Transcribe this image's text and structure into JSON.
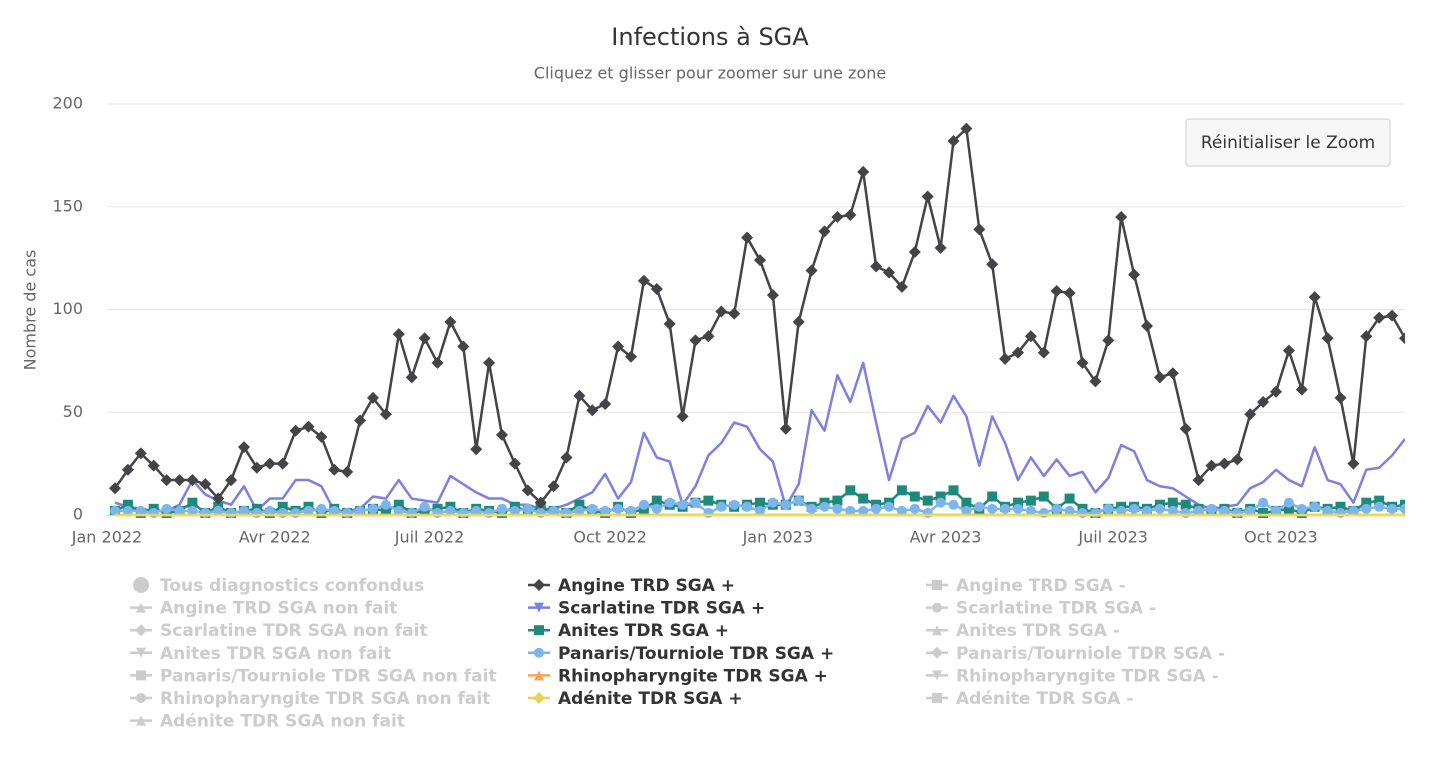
{
  "chart_data": {
    "type": "line",
    "title": "Infections à SGA",
    "subtitle": "Cliquez et glisser pour zoomer sur une zone",
    "y_axis_label": "Nombre de cas",
    "button": "Réinitialiser le Zoom",
    "ylim": [
      0,
      200
    ],
    "yticks": [
      0,
      50,
      100,
      150,
      200
    ],
    "grid": true,
    "legend_position": "bottom",
    "categories": [
      "Jan 2022",
      null,
      null,
      null,
      null,
      null,
      null,
      null,
      null,
      null,
      null,
      null,
      null,
      "Avr 2022",
      null,
      null,
      null,
      null,
      null,
      null,
      null,
      null,
      null,
      null,
      null,
      "Juil 2022",
      null,
      null,
      null,
      null,
      null,
      null,
      null,
      null,
      null,
      null,
      null,
      null,
      null,
      "Oct 2022",
      null,
      null,
      null,
      null,
      null,
      null,
      null,
      null,
      null,
      null,
      null,
      null,
      "Jan 2023",
      null,
      null,
      null,
      null,
      null,
      null,
      null,
      null,
      null,
      null,
      null,
      null,
      "Avr 2023",
      null,
      null,
      null,
      null,
      null,
      null,
      null,
      null,
      null,
      null,
      null,
      null,
      "Juil 2023",
      null,
      null,
      null,
      null,
      null,
      null,
      null,
      null,
      null,
      null,
      null,
      null,
      "Oct 2023",
      null,
      null,
      null,
      null,
      null,
      null,
      null,
      null,
      null
    ],
    "series": [
      {
        "name": "Tous diagnostics confondus",
        "visible": false,
        "marker": "circle"
      },
      {
        "name": "Angine TRD SGA +",
        "visible": true,
        "marker": "diamond",
        "color": "#434348",
        "show_markers": true,
        "values": [
          13,
          22,
          30,
          24,
          17,
          17,
          17,
          15,
          8,
          17,
          33,
          23,
          25,
          25,
          41,
          43,
          38,
          22,
          21,
          46,
          57,
          49,
          88,
          67,
          86,
          74,
          94,
          82,
          32,
          74,
          39,
          25,
          12,
          6,
          14,
          28,
          58,
          51,
          54,
          82,
          77,
          114,
          110,
          93,
          48,
          85,
          87,
          99,
          98,
          135,
          124,
          107,
          42,
          94,
          119,
          138,
          145,
          146,
          167,
          121,
          118,
          111,
          128,
          155,
          130,
          182,
          188,
          139,
          122,
          76,
          79,
          87,
          79,
          109,
          108,
          74,
          65,
          85,
          145,
          117,
          92,
          67,
          69,
          42,
          17,
          24,
          25,
          27,
          49,
          55,
          60,
          80,
          61,
          106,
          86,
          57,
          25,
          87,
          96,
          97,
          86
        ]
      },
      {
        "name": "Angine TRD SGA -",
        "visible": false,
        "marker": "square"
      },
      {
        "name": "Angine TRD SGA non fait",
        "visible": false,
        "marker": "triangle"
      },
      {
        "name": "Scarlatine TDR SGA +",
        "visible": true,
        "marker": "triangle-down",
        "color": "#7c80de",
        "show_markers": false,
        "values": [
          6,
          4,
          3,
          2,
          2,
          5,
          17,
          10,
          7,
          5,
          14,
          2,
          8,
          8,
          17,
          17,
          14,
          2,
          2,
          3,
          9,
          8,
          17,
          8,
          7,
          6,
          19,
          15,
          11,
          8,
          8,
          5,
          5,
          3,
          3,
          5,
          8,
          11,
          20,
          8,
          16,
          40,
          28,
          26,
          5,
          14,
          29,
          35,
          45,
          43,
          32,
          26,
          4,
          15,
          51,
          41,
          68,
          55,
          74,
          45,
          17,
          37,
          40,
          53,
          45,
          58,
          48,
          24,
          48,
          35,
          17,
          28,
          19,
          27,
          19,
          21,
          11,
          18,
          34,
          31,
          17,
          14,
          13,
          9,
          5,
          3,
          4,
          5,
          13,
          16,
          22,
          17,
          14,
          33,
          17,
          15,
          6,
          22,
          23,
          29,
          37
        ]
      },
      {
        "name": "Scarlatine TDR SGA -",
        "visible": false,
        "marker": "circle"
      },
      {
        "name": "Scarlatine TDR SGA non fait",
        "visible": false,
        "marker": "diamond"
      },
      {
        "name": "Anites TDR SGA +",
        "visible": true,
        "marker": "square",
        "color": "#1f8a7c",
        "show_markers": true,
        "values": [
          2,
          5,
          1,
          3,
          1,
          2,
          6,
          1,
          4,
          1,
          2,
          3,
          1,
          4,
          2,
          4,
          1,
          3,
          1,
          2,
          3,
          2,
          5,
          1,
          2,
          3,
          4,
          1,
          3,
          2,
          1,
          4,
          2,
          3,
          2,
          1,
          5,
          2,
          1,
          4,
          1,
          3,
          7,
          5,
          4,
          6,
          7,
          5,
          4,
          5,
          6,
          5,
          5,
          7,
          4,
          6,
          7,
          12,
          8,
          5,
          6,
          12,
          9,
          7,
          9,
          12,
          6,
          3,
          9,
          4,
          6,
          7,
          9,
          3,
          8,
          3,
          1,
          3,
          4,
          4,
          3,
          5,
          6,
          5,
          3,
          2,
          3,
          1,
          3,
          1,
          2,
          3,
          1,
          4,
          3,
          4,
          2,
          6,
          7,
          4,
          5
        ]
      },
      {
        "name": "Anites TDR SGA -",
        "visible": false,
        "marker": "triangle"
      },
      {
        "name": "Anites TDR SGA non fait",
        "visible": false,
        "marker": "triangle-down"
      },
      {
        "name": "Panaris/Tourniole TDR SGA +",
        "visible": true,
        "marker": "circle",
        "color": "#7cb5ec",
        "show_markers": true,
        "values": [
          2,
          2,
          2,
          1,
          3,
          2,
          2,
          1,
          2,
          1,
          2,
          1,
          2,
          1,
          1,
          2,
          3,
          2,
          1,
          2,
          3,
          5,
          2,
          1,
          4,
          1,
          2,
          1,
          2,
          1,
          3,
          2,
          3,
          1,
          2,
          1,
          2,
          3,
          2,
          3,
          2,
          5,
          3,
          6,
          5,
          6,
          1,
          4,
          5,
          4,
          2,
          6,
          5,
          7,
          3,
          4,
          3,
          2,
          2,
          3,
          4,
          2,
          3,
          1,
          6,
          5,
          2,
          4,
          3,
          3,
          3,
          2,
          1,
          3,
          2,
          1,
          1,
          3,
          2,
          3,
          2,
          3,
          2,
          1,
          2,
          3,
          2,
          1,
          2,
          6,
          2,
          6,
          3,
          4,
          2,
          1,
          2,
          3,
          4,
          3,
          3
        ]
      },
      {
        "name": "Panaris/Tourniole TDR SGA -",
        "visible": false,
        "marker": "diamond"
      },
      {
        "name": "Panaris/Tourniole TDR SGA non fait",
        "visible": false,
        "marker": "square"
      },
      {
        "name": "Rhinopharyngite TDR SGA +",
        "visible": true,
        "marker": "triangle",
        "color": "#f7a35c",
        "show_markers": false,
        "values": [
          0,
          0,
          0,
          0,
          0,
          0,
          0,
          0,
          0,
          0,
          0,
          0,
          0,
          0,
          0,
          0,
          0,
          0,
          0,
          0,
          0,
          0,
          0,
          0,
          0,
          0,
          0,
          0,
          0,
          0,
          0,
          0,
          0,
          0,
          0,
          0,
          0,
          0,
          0,
          0,
          0,
          0,
          0,
          0,
          0,
          0,
          0,
          0,
          0,
          0,
          0,
          0,
          0,
          0,
          0,
          0,
          0,
          0,
          0,
          0,
          0,
          0,
          0,
          0,
          0,
          0,
          0,
          0,
          0,
          0,
          0,
          0,
          0,
          0,
          0,
          0,
          0,
          0,
          0,
          0,
          0,
          0,
          0,
          0,
          0,
          0,
          0,
          0,
          0,
          0,
          0,
          0,
          0,
          0,
          0,
          0,
          0,
          0,
          0,
          0,
          0
        ]
      },
      {
        "name": "Rhinopharyngite TDR SGA -",
        "visible": false,
        "marker": "triangle-down"
      },
      {
        "name": "Rhinopharyngite TDR SGA non fait",
        "visible": false,
        "marker": "circle"
      },
      {
        "name": "Adénite TDR SGA +",
        "visible": true,
        "marker": "diamond",
        "color": "#e4d354",
        "show_markers": false,
        "values": [
          0,
          0,
          0,
          0,
          0,
          0,
          0,
          0,
          0,
          0,
          0,
          0,
          0,
          0,
          0,
          0,
          0,
          0,
          0,
          0,
          0,
          0,
          0,
          0,
          0,
          0,
          0,
          0,
          0,
          0,
          0,
          0,
          0,
          0,
          0,
          0,
          0,
          0,
          0,
          0,
          0,
          0,
          0,
          0,
          0,
          0,
          0,
          0,
          0,
          0,
          0,
          0,
          0,
          0,
          0,
          0,
          0,
          0,
          0,
          0,
          0,
          0,
          0,
          0,
          0,
          0,
          0,
          0,
          0,
          0,
          0,
          0,
          0,
          0,
          0,
          0,
          0,
          0,
          0,
          0,
          0,
          0,
          0,
          0,
          0,
          0,
          0,
          0,
          0,
          0,
          0,
          0,
          0,
          0,
          0,
          0,
          0,
          0,
          0,
          0,
          0
        ]
      },
      {
        "name": "Adénite TDR SGA -",
        "visible": false,
        "marker": "square"
      },
      {
        "name": "Adénite TDR SGA non fait",
        "visible": false,
        "marker": "triangle"
      }
    ]
  }
}
